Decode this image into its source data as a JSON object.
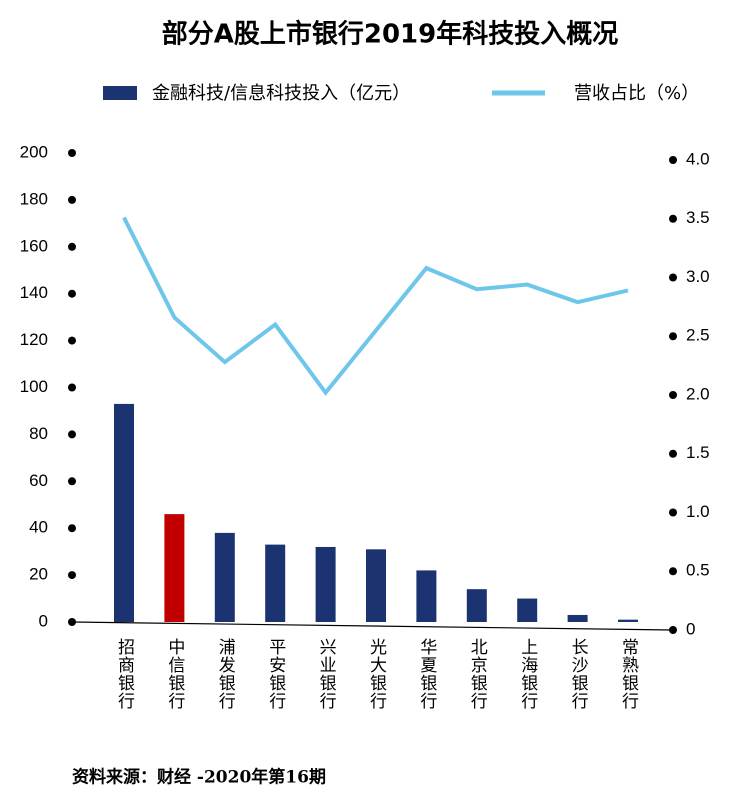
{
  "chart_data": {
    "type": "bar-line",
    "title": "部分A股上市银行2019年科技投入概况",
    "source": "资料来源：财经 -2020年第16期",
    "categories": [
      "招商银行",
      "中信银行",
      "浦发银行",
      "平安银行",
      "兴业银行",
      "光大银行",
      "华夏银行",
      "北京银行",
      "上海银行",
      "长沙银行",
      "常熟银行"
    ],
    "series": [
      {
        "name": "金融科技/信息科技投入（亿元）",
        "type": "bar",
        "color": "#1b3370",
        "colors": [
          "#1b3370",
          "#c00000",
          "#1b3370",
          "#1b3370",
          "#1b3370",
          "#1b3370",
          "#1b3370",
          "#1b3370",
          "#1b3370",
          "#1b3370",
          "#1b3370"
        ],
        "values": [
          93,
          46,
          38,
          33,
          32,
          31,
          22,
          14,
          10,
          3,
          1
        ]
      },
      {
        "name": "营收占比（%）",
        "type": "line",
        "axis": "y2",
        "color": "#6ec6ea",
        "values": [
          3.51,
          2.66,
          2.28,
          2.6,
          2.02,
          2.55,
          3.08,
          2.9,
          2.94,
          2.79,
          2.89
        ]
      }
    ],
    "ylim": [
      0,
      200
    ],
    "yticks": [
      0,
      20,
      40,
      60,
      80,
      100,
      120,
      140,
      160,
      180,
      200
    ],
    "y2lim": [
      0,
      4
    ],
    "y2ticks": [
      0,
      0.5,
      {
        "value": 1,
        "label": "1.0"
      },
      1.5,
      {
        "value": 2,
        "label": "2.0"
      },
      2.5,
      {
        "value": 3,
        "label": "3.0"
      },
      3.5,
      {
        "value": 4,
        "label": "4.0"
      }
    ]
  }
}
